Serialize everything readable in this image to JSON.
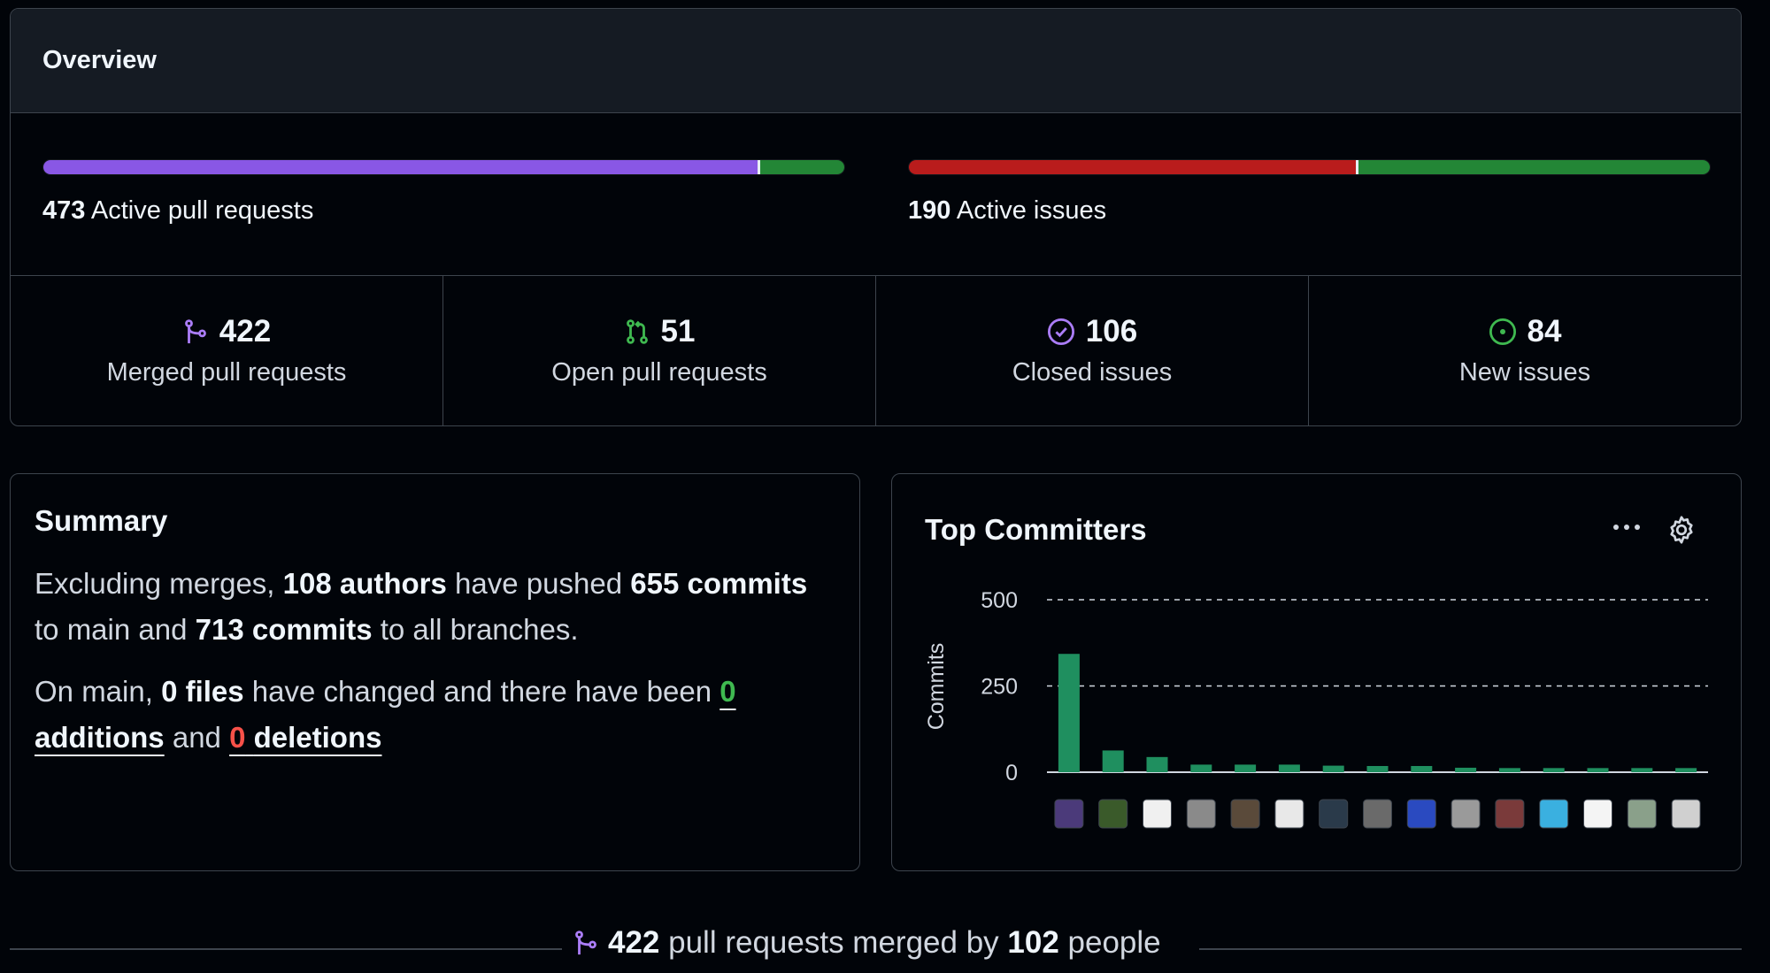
{
  "overview": {
    "title": "Overview",
    "pull_requests": {
      "count": "473",
      "label": "Active pull requests",
      "merged_fraction": 0.892,
      "colors": {
        "merged": "#8957e5",
        "open": "#238636"
      }
    },
    "issues": {
      "count": "190",
      "label": "Active issues",
      "closed_fraction": 0.558,
      "colors": {
        "closed": "#b91c1c",
        "new": "#238636"
      }
    },
    "stats": [
      {
        "icon": "git-merge-icon",
        "value": "422",
        "label": "Merged pull requests",
        "color": "#ab7df8"
      },
      {
        "icon": "git-pull-request-icon",
        "value": "51",
        "label": "Open pull requests",
        "color": "#3fb950"
      },
      {
        "icon": "issue-closed-icon",
        "value": "106",
        "label": "Closed issues",
        "color": "#ab7df8"
      },
      {
        "icon": "issue-opened-icon",
        "value": "84",
        "label": "New issues",
        "color": "#3fb950"
      }
    ]
  },
  "summary": {
    "title": "Summary",
    "p1": {
      "t1": "Excluding merges, ",
      "authors": "108 authors",
      "t2": " have pushed ",
      "commits_main": "655 commits",
      "t3": " to main and ",
      "commits_all": "713 commits",
      "t4": " to all branches."
    },
    "p2": {
      "t1": "On main, ",
      "files": "0 files",
      "t2": " have changed and there have been ",
      "additions_num": "0",
      "additions_label": "additions",
      "t3": " and ",
      "deletions_num": "0",
      "deletions_label": "deletions"
    }
  },
  "top_committers": {
    "title": "Top Committers",
    "more_icon": "kebab-horizontal-icon",
    "settings_icon": "gear-icon"
  },
  "chart_data": {
    "type": "bar",
    "ylabel": "Commits",
    "yticks": [
      0,
      250,
      500
    ],
    "ylim": [
      0,
      500
    ],
    "grid": "dashed horizontal",
    "bar_color": "#1f8f5f",
    "x_labels": "avatars",
    "values": [
      343,
      63,
      44,
      22,
      22,
      22,
      19,
      18,
      18,
      13,
      12,
      12,
      12,
      12,
      12
    ]
  },
  "footer": {
    "icon": "git-merge-icon",
    "prs": "422",
    "t1": " pull requests merged by ",
    "people": "102",
    "t2": " people"
  }
}
